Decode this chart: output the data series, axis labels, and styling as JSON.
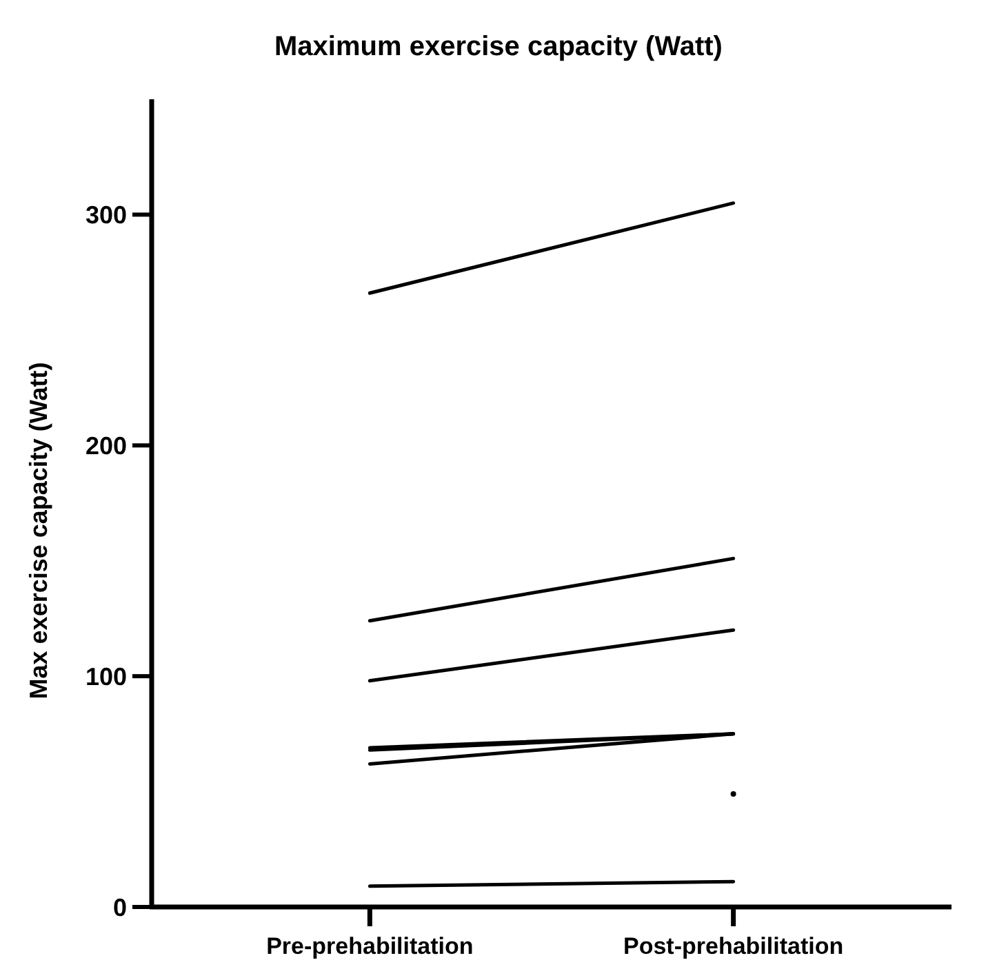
{
  "chart_data": {
    "type": "line",
    "title": "Maximum exercise capacity (Watt)",
    "ylabel": "Max exercise capacity (Watt)",
    "categories": [
      "Pre-prehabilitation",
      "Post-prehabilitation"
    ],
    "ylim": [
      0,
      350
    ],
    "yticks": [
      0,
      100,
      200,
      300
    ],
    "grid": false,
    "marker": "none",
    "line_style": "solid",
    "series": [
      {
        "color": "#000000",
        "values": [
          266,
          305
        ]
      },
      {
        "color": "#000000",
        "values": [
          124,
          151
        ]
      },
      {
        "color": "#000000",
        "values": [
          98,
          120
        ]
      },
      {
        "color": "#000000",
        "values": [
          69,
          75
        ]
      },
      {
        "color": "#000000",
        "values": [
          68,
          75
        ]
      },
      {
        "color": "#000000",
        "values": [
          62,
          75
        ]
      },
      {
        "type": "scatter",
        "marker": "circle",
        "color": "#000000",
        "x": [
          "Post-prehabilitation"
        ],
        "values": [
          49
        ]
      },
      {
        "color": "#000000",
        "values": [
          9,
          11
        ]
      }
    ]
  }
}
